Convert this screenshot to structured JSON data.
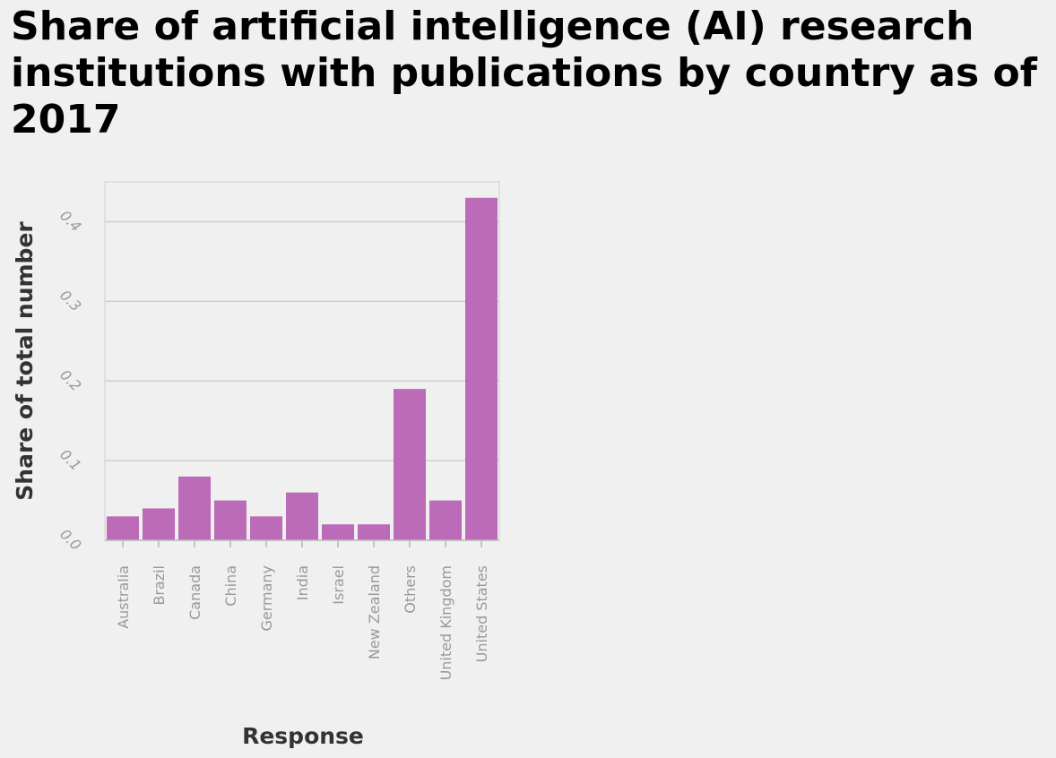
{
  "chart_data": {
    "type": "bar",
    "title": "Share of artificial intelligence (AI) research institutions with publications by country as of 2017",
    "xlabel": "Response",
    "ylabel": "Share of total number",
    "categories": [
      "Australia",
      "Brazil",
      "Canada",
      "China",
      "Germany",
      "India",
      "Israel",
      "New Zealand",
      "Others",
      "United Kingdom",
      "United States"
    ],
    "values": [
      0.03,
      0.04,
      0.08,
      0.05,
      0.03,
      0.06,
      0.02,
      0.02,
      0.19,
      0.05,
      0.43
    ],
    "ylim": [
      0,
      0.45
    ],
    "yticks": [
      "0.0",
      "0.1",
      "0.2",
      "0.3",
      "0.4"
    ],
    "grid": true,
    "bar_color": "#bb6bb8"
  }
}
